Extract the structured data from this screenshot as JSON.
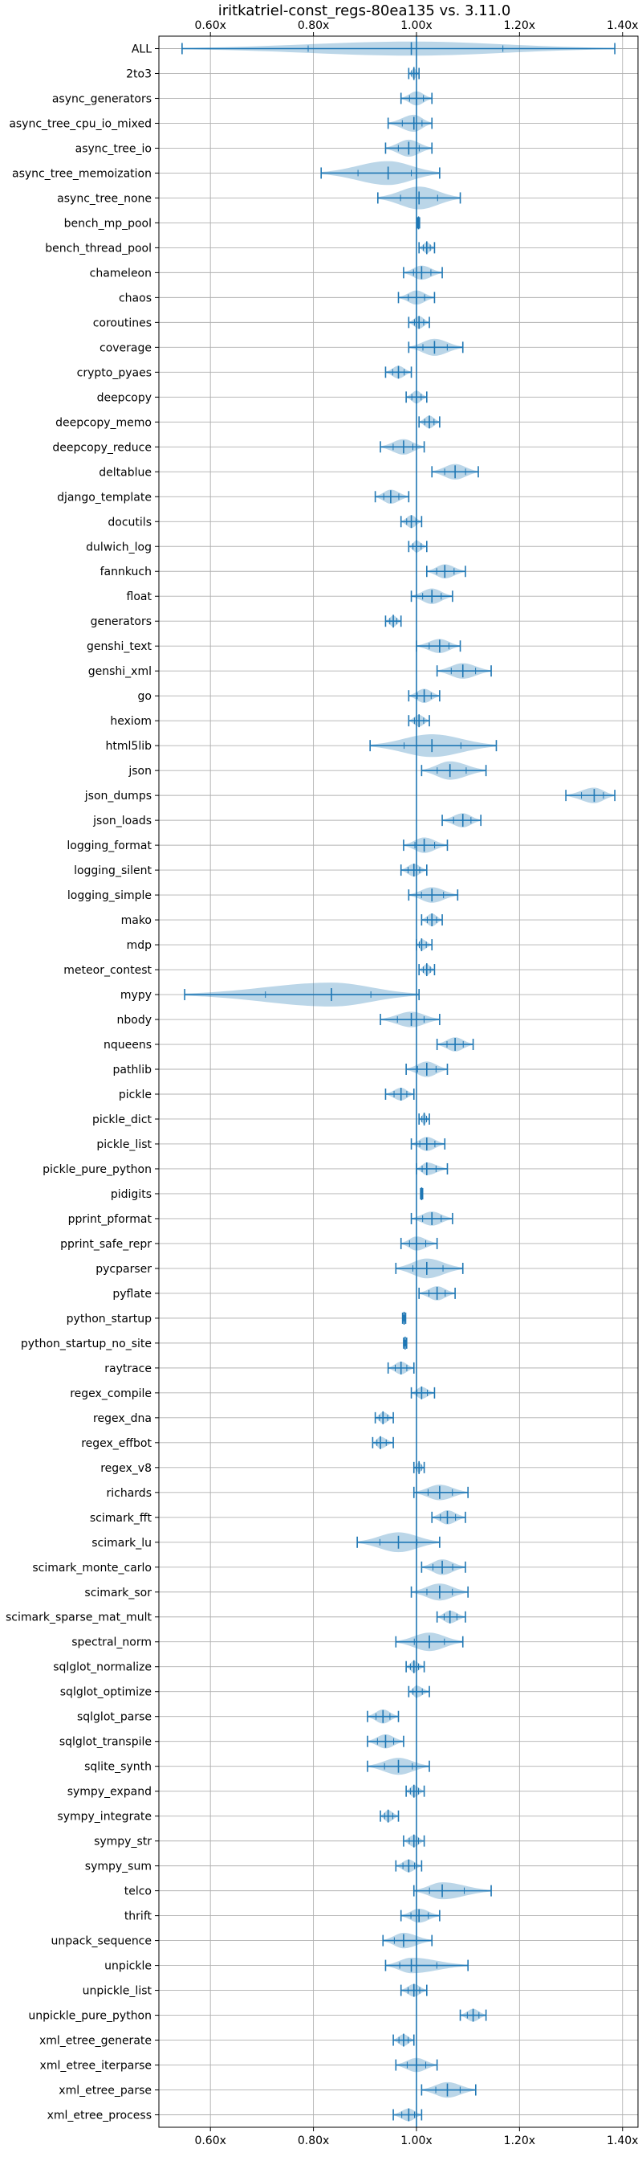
{
  "chart_data": {
    "type": "violin",
    "title": "iritkatriel-const_regs-80ea135 vs. 3.11.0",
    "xlim": [
      0.5,
      1.43
    ],
    "x_ticks": [
      {
        "value": 0.6,
        "label": "0.60x"
      },
      {
        "value": 0.8,
        "label": "0.80x"
      },
      {
        "value": 1.0,
        "label": "1.00x"
      },
      {
        "value": 1.2,
        "label": "1.20x"
      },
      {
        "value": 1.4,
        "label": "1.40x"
      }
    ],
    "reference_line": 1.0,
    "grid": true,
    "colors": {
      "violin": "#1f77b4",
      "grid": "#b0b0b0"
    },
    "benchmarks": [
      {
        "name": "ALL",
        "min": 0.545,
        "median": 0.99,
        "max": 1.385,
        "spread": 0.02
      },
      {
        "name": "2to3",
        "min": 0.985,
        "median": 0.995,
        "max": 1.005,
        "spread": 0.008
      },
      {
        "name": "async_generators",
        "min": 0.97,
        "median": 1.0,
        "max": 1.03,
        "spread": 0.02
      },
      {
        "name": "async_tree_cpu_io_mixed",
        "min": 0.945,
        "median": 0.995,
        "max": 1.03,
        "spread": 0.03
      },
      {
        "name": "async_tree_io",
        "min": 0.94,
        "median": 0.985,
        "max": 1.03,
        "spread": 0.03
      },
      {
        "name": "async_tree_memoization",
        "min": 0.815,
        "median": 0.945,
        "max": 1.045,
        "spread": 0.08
      },
      {
        "name": "async_tree_none",
        "min": 0.925,
        "median": 1.005,
        "max": 1.085,
        "spread": 0.05
      },
      {
        "name": "bench_mp_pool",
        "min": 1.002,
        "median": 1.004,
        "max": 1.006,
        "spread": 0.002
      },
      {
        "name": "bench_thread_pool",
        "min": 1.005,
        "median": 1.02,
        "max": 1.035,
        "spread": 0.01
      },
      {
        "name": "chameleon",
        "min": 0.975,
        "median": 1.01,
        "max": 1.05,
        "spread": 0.02
      },
      {
        "name": "chaos",
        "min": 0.965,
        "median": 1.0,
        "max": 1.035,
        "spread": 0.02
      },
      {
        "name": "coroutines",
        "min": 0.985,
        "median": 1.005,
        "max": 1.025,
        "spread": 0.015
      },
      {
        "name": "coverage",
        "min": 0.985,
        "median": 1.035,
        "max": 1.09,
        "spread": 0.03
      },
      {
        "name": "crypto_pyaes",
        "min": 0.94,
        "median": 0.965,
        "max": 0.99,
        "spread": 0.015
      },
      {
        "name": "deepcopy",
        "min": 0.98,
        "median": 1.0,
        "max": 1.02,
        "spread": 0.015
      },
      {
        "name": "deepcopy_memo",
        "min": 1.005,
        "median": 1.025,
        "max": 1.045,
        "spread": 0.015
      },
      {
        "name": "deepcopy_reduce",
        "min": 0.93,
        "median": 0.975,
        "max": 1.015,
        "spread": 0.025
      },
      {
        "name": "deltablue",
        "min": 1.03,
        "median": 1.075,
        "max": 1.12,
        "spread": 0.025
      },
      {
        "name": "django_template",
        "min": 0.92,
        "median": 0.95,
        "max": 0.985,
        "spread": 0.02
      },
      {
        "name": "docutils",
        "min": 0.97,
        "median": 0.99,
        "max": 1.01,
        "spread": 0.015
      },
      {
        "name": "dulwich_log",
        "min": 0.985,
        "median": 1.0,
        "max": 1.02,
        "spread": 0.012
      },
      {
        "name": "fannkuch",
        "min": 1.02,
        "median": 1.055,
        "max": 1.095,
        "spread": 0.02
      },
      {
        "name": "float",
        "min": 0.99,
        "median": 1.03,
        "max": 1.07,
        "spread": 0.025
      },
      {
        "name": "generators",
        "min": 0.94,
        "median": 0.955,
        "max": 0.97,
        "spread": 0.01
      },
      {
        "name": "genshi_text",
        "min": 1.0,
        "median": 1.045,
        "max": 1.085,
        "spread": 0.02
      },
      {
        "name": "genshi_xml",
        "min": 1.04,
        "median": 1.09,
        "max": 1.145,
        "spread": 0.025
      },
      {
        "name": "go",
        "min": 0.985,
        "median": 1.015,
        "max": 1.045,
        "spread": 0.02
      },
      {
        "name": "hexiom",
        "min": 0.985,
        "median": 1.005,
        "max": 1.025,
        "spread": 0.012
      },
      {
        "name": "html5lib",
        "min": 0.91,
        "median": 1.03,
        "max": 1.155,
        "spread": 0.05
      },
      {
        "name": "json",
        "min": 1.01,
        "median": 1.065,
        "max": 1.135,
        "spread": 0.035
      },
      {
        "name": "json_dumps",
        "min": 1.29,
        "median": 1.345,
        "max": 1.385,
        "spread": 0.025
      },
      {
        "name": "json_loads",
        "min": 1.05,
        "median": 1.09,
        "max": 1.125,
        "spread": 0.02
      },
      {
        "name": "logging_format",
        "min": 0.975,
        "median": 1.015,
        "max": 1.06,
        "spread": 0.025
      },
      {
        "name": "logging_silent",
        "min": 0.97,
        "median": 0.995,
        "max": 1.02,
        "spread": 0.015
      },
      {
        "name": "logging_simple",
        "min": 0.985,
        "median": 1.03,
        "max": 1.08,
        "spread": 0.025
      },
      {
        "name": "mako",
        "min": 1.01,
        "median": 1.03,
        "max": 1.05,
        "spread": 0.015
      },
      {
        "name": "mdp",
        "min": 1.0,
        "median": 1.01,
        "max": 1.03,
        "spread": 0.01
      },
      {
        "name": "meteor_contest",
        "min": 1.005,
        "median": 1.02,
        "max": 1.035,
        "spread": 0.01
      },
      {
        "name": "mypy",
        "min": 0.55,
        "median": 0.835,
        "max": 1.005,
        "spread": 0.18
      },
      {
        "name": "nbody",
        "min": 0.93,
        "median": 0.99,
        "max": 1.045,
        "spread": 0.025
      },
      {
        "name": "nqueens",
        "min": 1.04,
        "median": 1.075,
        "max": 1.11,
        "spread": 0.02
      },
      {
        "name": "pathlib",
        "min": 0.98,
        "median": 1.02,
        "max": 1.06,
        "spread": 0.025
      },
      {
        "name": "pickle",
        "min": 0.94,
        "median": 0.97,
        "max": 0.995,
        "spread": 0.015
      },
      {
        "name": "pickle_dict",
        "min": 1.005,
        "median": 1.015,
        "max": 1.025,
        "spread": 0.008
      },
      {
        "name": "pickle_list",
        "min": 0.99,
        "median": 1.02,
        "max": 1.055,
        "spread": 0.02
      },
      {
        "name": "pickle_pure_python",
        "min": 1.0,
        "median": 1.02,
        "max": 1.06,
        "spread": 0.015
      },
      {
        "name": "pidigits",
        "min": 1.008,
        "median": 1.01,
        "max": 1.012,
        "spread": 0.003
      },
      {
        "name": "pprint_pformat",
        "min": 0.99,
        "median": 1.03,
        "max": 1.07,
        "spread": 0.02
      },
      {
        "name": "pprint_safe_repr",
        "min": 0.97,
        "median": 1.0,
        "max": 1.04,
        "spread": 0.02
      },
      {
        "name": "pycparser",
        "min": 0.96,
        "median": 1.02,
        "max": 1.09,
        "spread": 0.04
      },
      {
        "name": "pyflate",
        "min": 1.005,
        "median": 1.04,
        "max": 1.075,
        "spread": 0.02
      },
      {
        "name": "python_startup",
        "min": 0.973,
        "median": 0.976,
        "max": 0.979,
        "spread": 0.003
      },
      {
        "name": "python_startup_no_site",
        "min": 0.975,
        "median": 0.978,
        "max": 0.981,
        "spread": 0.003
      },
      {
        "name": "raytrace",
        "min": 0.945,
        "median": 0.97,
        "max": 0.995,
        "spread": 0.015
      },
      {
        "name": "regex_compile",
        "min": 0.99,
        "median": 1.01,
        "max": 1.035,
        "spread": 0.012
      },
      {
        "name": "regex_dna",
        "min": 0.92,
        "median": 0.935,
        "max": 0.955,
        "spread": 0.012
      },
      {
        "name": "regex_effbot",
        "min": 0.915,
        "median": 0.93,
        "max": 0.955,
        "spread": 0.012
      },
      {
        "name": "regex_v8",
        "min": 0.995,
        "median": 1.005,
        "max": 1.015,
        "spread": 0.008
      },
      {
        "name": "richards",
        "min": 0.995,
        "median": 1.045,
        "max": 1.1,
        "spread": 0.025
      },
      {
        "name": "scimark_fft",
        "min": 1.03,
        "median": 1.06,
        "max": 1.095,
        "spread": 0.02
      },
      {
        "name": "scimark_lu",
        "min": 0.885,
        "median": 0.965,
        "max": 1.045,
        "spread": 0.04
      },
      {
        "name": "scimark_monte_carlo",
        "min": 1.01,
        "median": 1.05,
        "max": 1.095,
        "spread": 0.025
      },
      {
        "name": "scimark_sor",
        "min": 0.99,
        "median": 1.045,
        "max": 1.1,
        "spread": 0.03
      },
      {
        "name": "scimark_sparse_mat_mult",
        "min": 1.04,
        "median": 1.065,
        "max": 1.095,
        "spread": 0.015
      },
      {
        "name": "spectral_norm",
        "min": 0.96,
        "median": 1.025,
        "max": 1.09,
        "spread": 0.035
      },
      {
        "name": "sqlglot_normalize",
        "min": 0.98,
        "median": 0.995,
        "max": 1.015,
        "spread": 0.012
      },
      {
        "name": "sqlglot_optimize",
        "min": 0.985,
        "median": 1.0,
        "max": 1.025,
        "spread": 0.012
      },
      {
        "name": "sqlglot_parse",
        "min": 0.905,
        "median": 0.935,
        "max": 0.965,
        "spread": 0.02
      },
      {
        "name": "sqlglot_transpile",
        "min": 0.905,
        "median": 0.94,
        "max": 0.975,
        "spread": 0.02
      },
      {
        "name": "sqlite_synth",
        "min": 0.905,
        "median": 0.965,
        "max": 1.025,
        "spread": 0.03
      },
      {
        "name": "sympy_expand",
        "min": 0.98,
        "median": 0.995,
        "max": 1.015,
        "spread": 0.012
      },
      {
        "name": "sympy_integrate",
        "min": 0.93,
        "median": 0.945,
        "max": 0.965,
        "spread": 0.012
      },
      {
        "name": "sympy_str",
        "min": 0.975,
        "median": 0.995,
        "max": 1.015,
        "spread": 0.012
      },
      {
        "name": "sympy_sum",
        "min": 0.96,
        "median": 0.985,
        "max": 1.01,
        "spread": 0.015
      },
      {
        "name": "telco",
        "min": 0.995,
        "median": 1.05,
        "max": 1.145,
        "spread": 0.03
      },
      {
        "name": "thrift",
        "min": 0.97,
        "median": 1.005,
        "max": 1.045,
        "spread": 0.02
      },
      {
        "name": "unpack_sequence",
        "min": 0.935,
        "median": 0.975,
        "max": 1.03,
        "spread": 0.025
      },
      {
        "name": "unpickle",
        "min": 0.94,
        "median": 0.99,
        "max": 1.1,
        "spread": 0.025
      },
      {
        "name": "unpickle_list",
        "min": 0.97,
        "median": 0.995,
        "max": 1.02,
        "spread": 0.015
      },
      {
        "name": "unpickle_pure_python",
        "min": 1.085,
        "median": 1.11,
        "max": 1.135,
        "spread": 0.015
      },
      {
        "name": "xml_etree_generate",
        "min": 0.955,
        "median": 0.975,
        "max": 0.995,
        "spread": 0.012
      },
      {
        "name": "xml_etree_iterparse",
        "min": 0.96,
        "median": 1.0,
        "max": 1.04,
        "spread": 0.02
      },
      {
        "name": "xml_etree_parse",
        "min": 1.01,
        "median": 1.06,
        "max": 1.115,
        "spread": 0.025
      },
      {
        "name": "xml_etree_process",
        "min": 0.955,
        "median": 0.985,
        "max": 1.01,
        "spread": 0.015
      }
    ]
  }
}
